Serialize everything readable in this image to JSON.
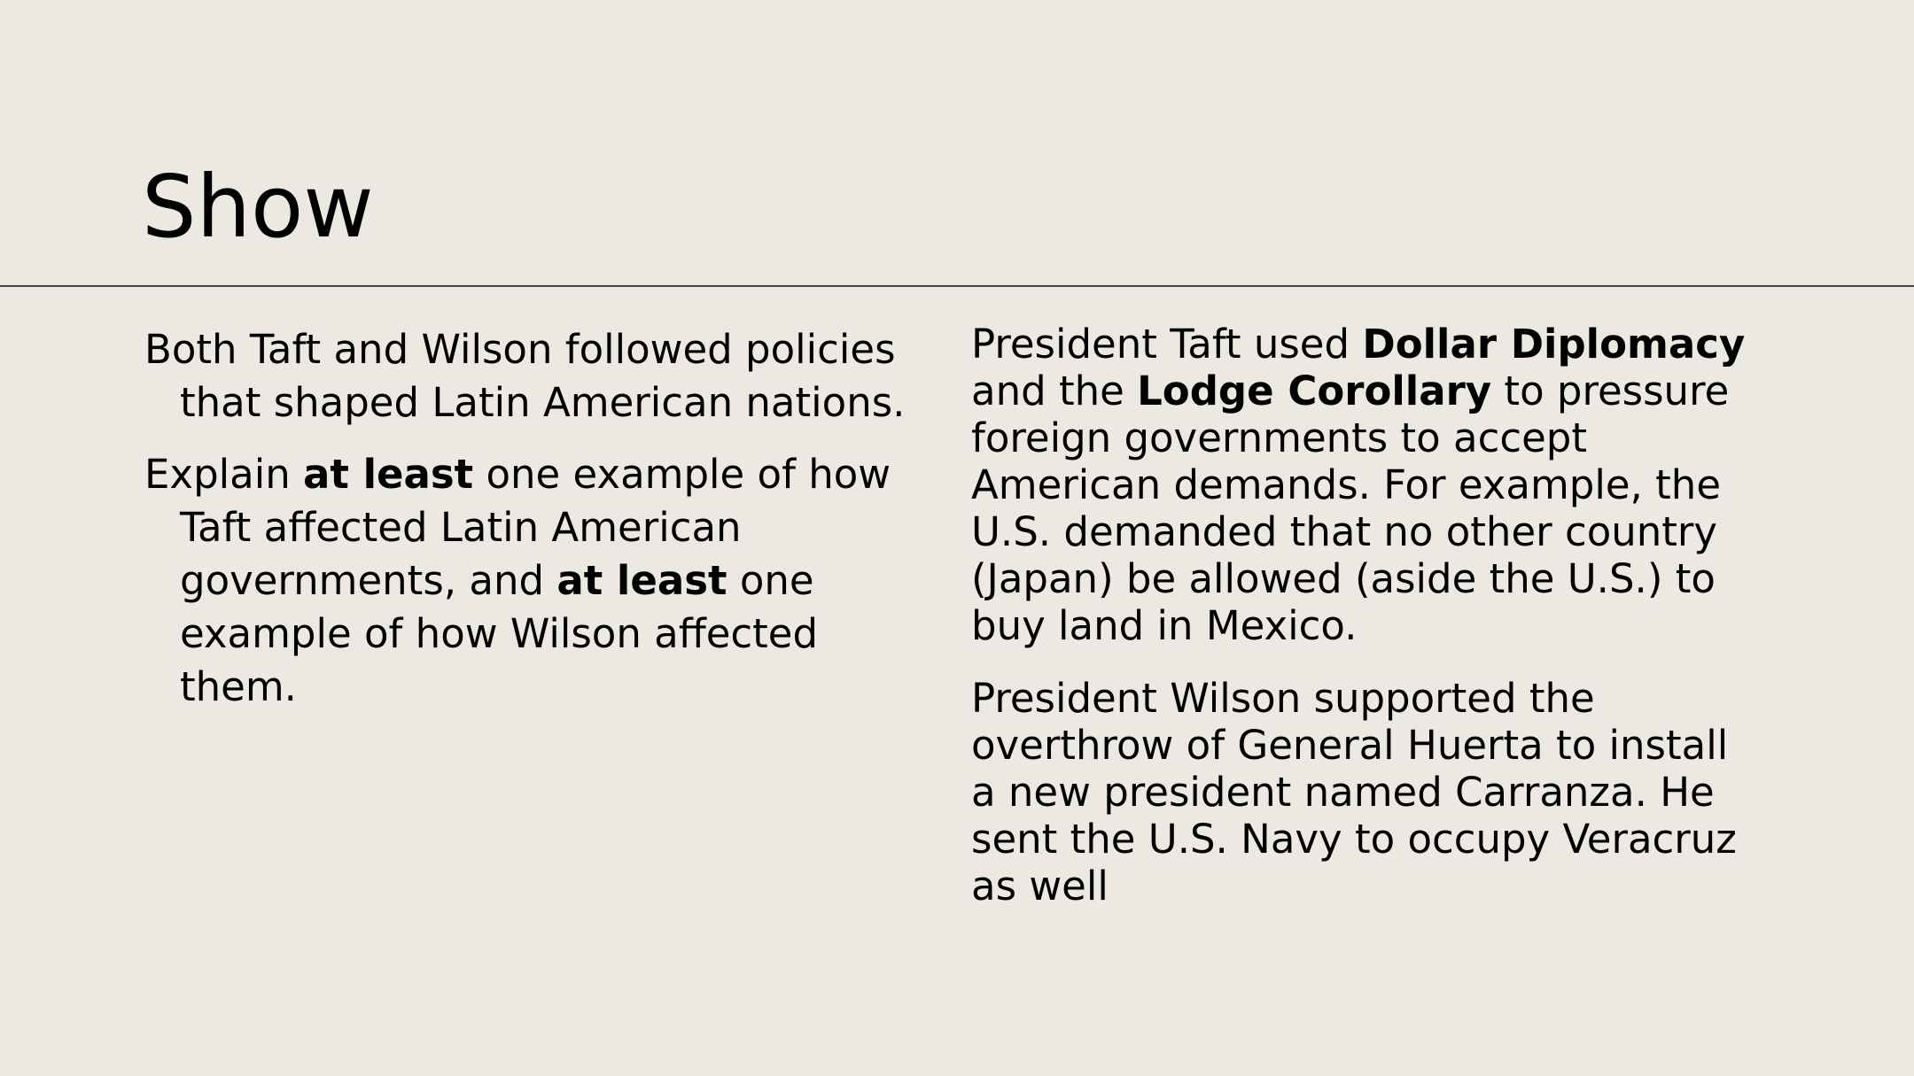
{
  "slide": {
    "title": "Show",
    "colors": {
      "background": "#ece9e2",
      "divider": "#424242",
      "text": "#000000"
    },
    "left_column": {
      "paragraphs": [
        [
          {
            "text": "Both Taft and Wilson followed policies that shaped Latin American nations.",
            "bold": false
          }
        ],
        [
          {
            "text": "Explain ",
            "bold": false
          },
          {
            "text": "at least",
            "bold": true
          },
          {
            "text": " one example of how Taft affected Latin American governments, and ",
            "bold": false
          },
          {
            "text": "at least",
            "bold": true
          },
          {
            "text": " one example of how Wilson affected them.",
            "bold": false
          }
        ]
      ]
    },
    "right_column": {
      "paragraphs": [
        [
          {
            "text": "President Taft used ",
            "bold": false
          },
          {
            "text": "Dollar Diplomacy",
            "bold": true
          },
          {
            "text": " and the ",
            "bold": false
          },
          {
            "text": "Lodge Corollary",
            "bold": true
          },
          {
            "text": " to pressure foreign governments to accept American demands. For example, the U.S. demanded that no other country (Japan) be allowed (aside the U.S.) to buy land in Mexico.",
            "bold": false
          }
        ],
        [
          {
            "text": "President Wilson supported the overthrow of General Huerta to install a new president named Carranza. He sent the U.S. Navy to occupy Veracruz as well",
            "bold": false
          }
        ]
      ]
    }
  }
}
